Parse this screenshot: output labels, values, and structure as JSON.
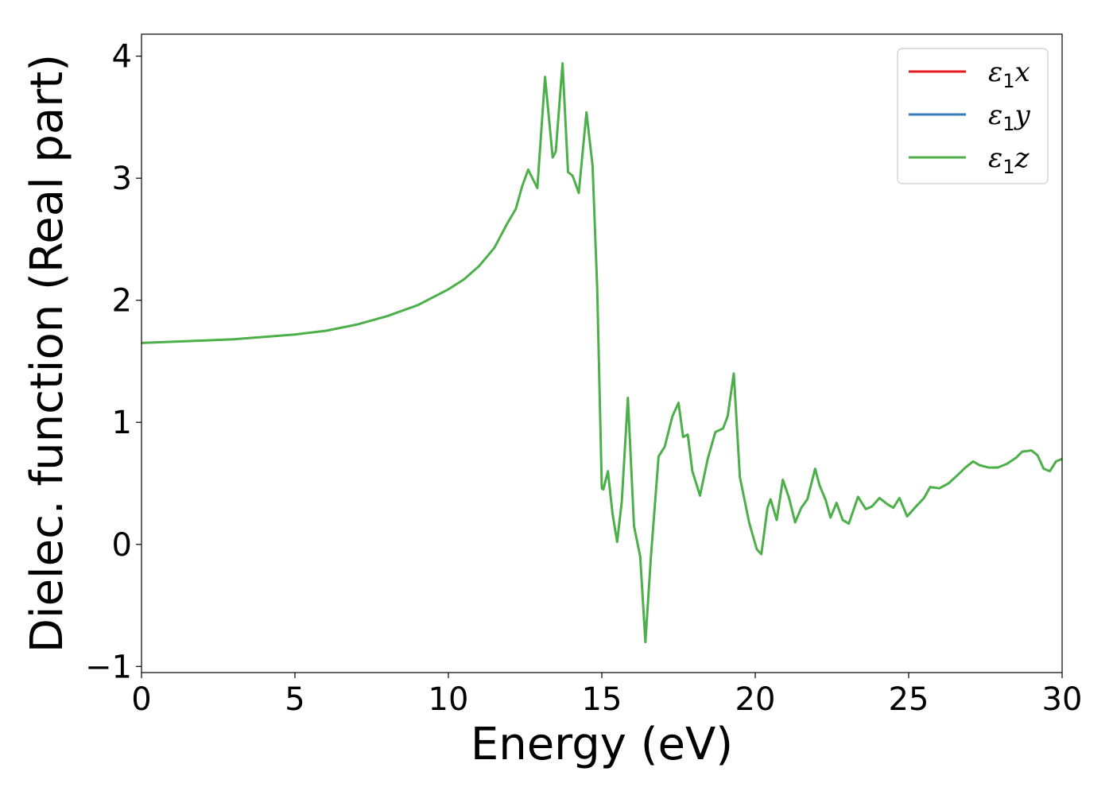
{
  "chart_data": {
    "type": "line",
    "xlabel": "Energy (eV)",
    "ylabel": "Dielec. function (Real part)",
    "xlim": [
      0,
      30
    ],
    "ylim": [
      -1.05,
      4.18
    ],
    "xticks": [
      {
        "value": 0,
        "label": "0"
      },
      {
        "value": 5,
        "label": "5"
      },
      {
        "value": 10,
        "label": "10"
      },
      {
        "value": 15,
        "label": "15"
      },
      {
        "value": 20,
        "label": "20"
      },
      {
        "value": 25,
        "label": "25"
      },
      {
        "value": 30,
        "label": "30"
      }
    ],
    "yticks": [
      {
        "value": -1,
        "label": "−1"
      },
      {
        "value": 0,
        "label": "0"
      },
      {
        "value": 1,
        "label": "1"
      },
      {
        "value": 2,
        "label": "2"
      },
      {
        "value": 3,
        "label": "3"
      },
      {
        "value": 4,
        "label": "4"
      }
    ],
    "grid": false,
    "legend_position": "top-right",
    "series": [
      {
        "name": "ε1x",
        "legend_base": "ε",
        "legend_sub": "1",
        "legend_tail": "x",
        "color": "#e41a1c",
        "width": 2
      },
      {
        "name": "ε1y",
        "legend_base": "ε",
        "legend_sub": "1",
        "legend_tail": "y",
        "color": "#377eb8",
        "width": 2
      },
      {
        "name": "ε1z",
        "legend_base": "ε",
        "legend_sub": "1",
        "legend_tail": "z",
        "color": "#4daf4a",
        "width": 3
      }
    ],
    "x": [
      0,
      1,
      2,
      3,
      4,
      5,
      6,
      7,
      8,
      9,
      10,
      10.5,
      11,
      11.5,
      11.9,
      12.2,
      12.4,
      12.6,
      12.9,
      13.15,
      13.4,
      13.5,
      13.72,
      13.9,
      14.05,
      14.25,
      14.5,
      14.7,
      14.85,
      15.0,
      15.05,
      15.2,
      15.35,
      15.5,
      15.65,
      15.85,
      16.05,
      16.25,
      16.42,
      16.6,
      16.85,
      17.05,
      17.3,
      17.5,
      17.65,
      17.8,
      17.95,
      18.2,
      18.45,
      18.7,
      18.95,
      19.1,
      19.3,
      19.5,
      19.8,
      20.05,
      20.2,
      20.4,
      20.5,
      20.7,
      20.9,
      21.1,
      21.3,
      21.5,
      21.7,
      21.95,
      22.1,
      22.3,
      22.45,
      22.65,
      22.85,
      23.05,
      23.35,
      23.6,
      23.8,
      24.05,
      24.3,
      24.5,
      24.7,
      24.95,
      25.2,
      25.5,
      25.7,
      26.0,
      26.3,
      26.6,
      26.85,
      27.1,
      27.3,
      27.6,
      27.9,
      28.2,
      28.5,
      28.7,
      29.0,
      29.2,
      29.4,
      29.6,
      29.8,
      30.0
    ],
    "y": [
      1.65,
      1.66,
      1.67,
      1.68,
      1.7,
      1.72,
      1.75,
      1.8,
      1.87,
      1.96,
      2.09,
      2.17,
      2.28,
      2.43,
      2.62,
      2.75,
      2.93,
      3.07,
      2.92,
      3.83,
      3.17,
      3.22,
      3.94,
      3.05,
      3.02,
      2.88,
      3.54,
      3.1,
      2.1,
      0.46,
      0.45,
      0.6,
      0.25,
      0.02,
      0.35,
      1.2,
      0.15,
      -0.1,
      -0.8,
      -0.1,
      0.72,
      0.8,
      1.05,
      1.16,
      0.88,
      0.9,
      0.6,
      0.4,
      0.7,
      0.92,
      0.95,
      1.05,
      1.4,
      0.55,
      0.18,
      -0.04,
      -0.08,
      0.3,
      0.37,
      0.2,
      0.53,
      0.38,
      0.18,
      0.3,
      0.37,
      0.62,
      0.48,
      0.36,
      0.22,
      0.34,
      0.2,
      0.17,
      0.39,
      0.29,
      0.31,
      0.38,
      0.33,
      0.3,
      0.38,
      0.23,
      0.3,
      0.38,
      0.47,
      0.46,
      0.5,
      0.57,
      0.63,
      0.68,
      0.65,
      0.63,
      0.63,
      0.66,
      0.71,
      0.76,
      0.77,
      0.73,
      0.62,
      0.6,
      0.68,
      0.7
    ]
  }
}
